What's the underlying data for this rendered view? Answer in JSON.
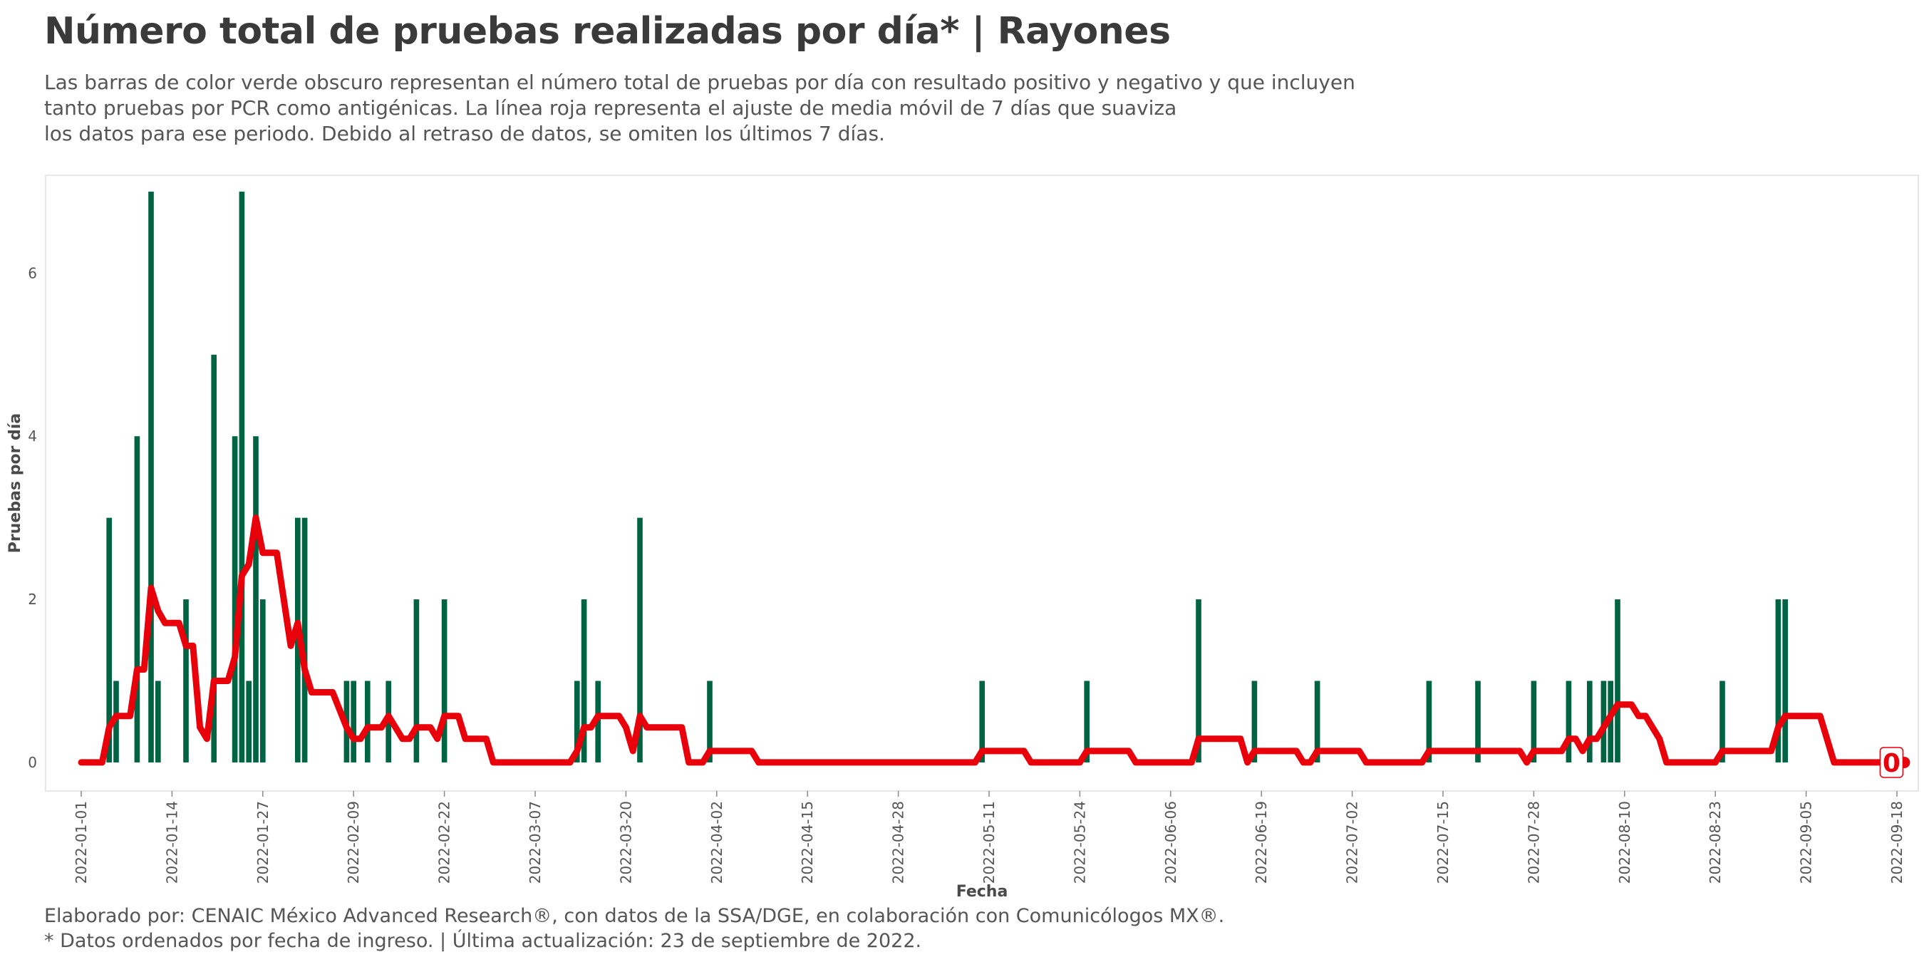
{
  "header": {
    "title": "Número total de pruebas realizadas por día* | Rayones",
    "subtitle_lines": [
      "Las barras de color verde obscuro representan el número total de pruebas por día con resultado positivo y negativo y que incluyen",
      "tanto pruebas por PCR como antigénicas. La línea roja representa el ajuste de media móvil de 7 días que suaviza",
      "los datos para ese periodo. Debido al retraso de datos, se omiten los últimos 7 días."
    ]
  },
  "caption": {
    "line1": "Elaborado por: CENAIC México Advanced Research®, con datos de la SSA/DGE, en colaboración con Comunicólogos MX®.",
    "line2": "* Datos ordenados por fecha de ingreso. | Última actualización: 23 de septiembre de 2022."
  },
  "colors": {
    "bars": "#006341",
    "moving_average": "#e8000b",
    "panel_border": "#e6e6e6"
  },
  "chart_data": {
    "type": "bar",
    "title": "Número total de pruebas realizadas por día* | Rayones",
    "xlabel": "Fecha",
    "ylabel": "Pruebas por día",
    "ylim": [
      -0.35,
      7.2
    ],
    "yticks": [
      0,
      2,
      4,
      6
    ],
    "x_start": "2022-01-01",
    "x_end": "2022-09-18",
    "x_ticks": [
      "2022-01-01",
      "2022-01-14",
      "2022-01-27",
      "2022-02-09",
      "2022-02-22",
      "2022-03-07",
      "2022-03-20",
      "2022-04-02",
      "2022-04-15",
      "2022-04-28",
      "2022-05-11",
      "2022-05-24",
      "2022-06-06",
      "2022-06-19",
      "2022-07-02",
      "2022-07-15",
      "2022-07-28",
      "2022-08-10",
      "2022-08-23",
      "2022-09-05",
      "2022-09-18"
    ],
    "grid": false,
    "bars": [
      {
        "date": "2022-01-05",
        "value": 3
      },
      {
        "date": "2022-01-06",
        "value": 1
      },
      {
        "date": "2022-01-09",
        "value": 4
      },
      {
        "date": "2022-01-11",
        "value": 7
      },
      {
        "date": "2022-01-12",
        "value": 1
      },
      {
        "date": "2022-01-16",
        "value": 2
      },
      {
        "date": "2022-01-20",
        "value": 5
      },
      {
        "date": "2022-01-23",
        "value": 4
      },
      {
        "date": "2022-01-24",
        "value": 7
      },
      {
        "date": "2022-01-25",
        "value": 1
      },
      {
        "date": "2022-01-26",
        "value": 4
      },
      {
        "date": "2022-01-27",
        "value": 2
      },
      {
        "date": "2022-02-01",
        "value": 3
      },
      {
        "date": "2022-02-02",
        "value": 3
      },
      {
        "date": "2022-02-08",
        "value": 1
      },
      {
        "date": "2022-02-09",
        "value": 1
      },
      {
        "date": "2022-02-11",
        "value": 1
      },
      {
        "date": "2022-02-14",
        "value": 1
      },
      {
        "date": "2022-02-18",
        "value": 2
      },
      {
        "date": "2022-02-22",
        "value": 2
      },
      {
        "date": "2022-03-13",
        "value": 1
      },
      {
        "date": "2022-03-14",
        "value": 2
      },
      {
        "date": "2022-03-16",
        "value": 1
      },
      {
        "date": "2022-03-22",
        "value": 3
      },
      {
        "date": "2022-04-01",
        "value": 1
      },
      {
        "date": "2022-05-10",
        "value": 1
      },
      {
        "date": "2022-05-25",
        "value": 1
      },
      {
        "date": "2022-06-10",
        "value": 2
      },
      {
        "date": "2022-06-18",
        "value": 1
      },
      {
        "date": "2022-06-27",
        "value": 1
      },
      {
        "date": "2022-07-13",
        "value": 1
      },
      {
        "date": "2022-07-20",
        "value": 1
      },
      {
        "date": "2022-07-28",
        "value": 1
      },
      {
        "date": "2022-08-02",
        "value": 1
      },
      {
        "date": "2022-08-05",
        "value": 1
      },
      {
        "date": "2022-08-07",
        "value": 1
      },
      {
        "date": "2022-08-08",
        "value": 1
      },
      {
        "date": "2022-08-09",
        "value": 2
      },
      {
        "date": "2022-08-24",
        "value": 1
      },
      {
        "date": "2022-09-01",
        "value": 2
      },
      {
        "date": "2022-09-02",
        "value": 2
      }
    ],
    "moving_average": [
      {
        "date": "2022-01-01",
        "value": 0
      },
      {
        "date": "2022-01-04",
        "value": 0
      },
      {
        "date": "2022-01-05",
        "value": 0.43
      },
      {
        "date": "2022-01-06",
        "value": 0.57
      },
      {
        "date": "2022-01-08",
        "value": 0.57
      },
      {
        "date": "2022-01-09",
        "value": 1.14
      },
      {
        "date": "2022-01-10",
        "value": 1.14
      },
      {
        "date": "2022-01-11",
        "value": 2.14
      },
      {
        "date": "2022-01-12",
        "value": 1.86
      },
      {
        "date": "2022-01-13",
        "value": 1.71
      },
      {
        "date": "2022-01-15",
        "value": 1.71
      },
      {
        "date": "2022-01-16",
        "value": 1.43
      },
      {
        "date": "2022-01-17",
        "value": 1.43
      },
      {
        "date": "2022-01-18",
        "value": 0.43
      },
      {
        "date": "2022-01-19",
        "value": 0.29
      },
      {
        "date": "2022-01-20",
        "value": 1.0
      },
      {
        "date": "2022-01-22",
        "value": 1.0
      },
      {
        "date": "2022-01-23",
        "value": 1.29
      },
      {
        "date": "2022-01-24",
        "value": 2.29
      },
      {
        "date": "2022-01-25",
        "value": 2.43
      },
      {
        "date": "2022-01-26",
        "value": 3.0
      },
      {
        "date": "2022-01-27",
        "value": 2.57
      },
      {
        "date": "2022-01-29",
        "value": 2.57
      },
      {
        "date": "2022-01-31",
        "value": 1.43
      },
      {
        "date": "2022-02-01",
        "value": 1.71
      },
      {
        "date": "2022-02-02",
        "value": 1.14
      },
      {
        "date": "2022-02-03",
        "value": 0.86
      },
      {
        "date": "2022-02-06",
        "value": 0.86
      },
      {
        "date": "2022-02-08",
        "value": 0.43
      },
      {
        "date": "2022-02-09",
        "value": 0.29
      },
      {
        "date": "2022-02-10",
        "value": 0.29
      },
      {
        "date": "2022-02-11",
        "value": 0.43
      },
      {
        "date": "2022-02-13",
        "value": 0.43
      },
      {
        "date": "2022-02-14",
        "value": 0.57
      },
      {
        "date": "2022-02-16",
        "value": 0.29
      },
      {
        "date": "2022-02-17",
        "value": 0.29
      },
      {
        "date": "2022-02-18",
        "value": 0.43
      },
      {
        "date": "2022-02-20",
        "value": 0.43
      },
      {
        "date": "2022-02-21",
        "value": 0.29
      },
      {
        "date": "2022-02-22",
        "value": 0.57
      },
      {
        "date": "2022-02-24",
        "value": 0.57
      },
      {
        "date": "2022-02-25",
        "value": 0.29
      },
      {
        "date": "2022-02-28",
        "value": 0.29
      },
      {
        "date": "2022-03-01",
        "value": 0
      },
      {
        "date": "2022-03-12",
        "value": 0
      },
      {
        "date": "2022-03-13",
        "value": 0.14
      },
      {
        "date": "2022-03-14",
        "value": 0.43
      },
      {
        "date": "2022-03-15",
        "value": 0.43
      },
      {
        "date": "2022-03-16",
        "value": 0.57
      },
      {
        "date": "2022-03-19",
        "value": 0.57
      },
      {
        "date": "2022-03-20",
        "value": 0.43
      },
      {
        "date": "2022-03-21",
        "value": 0.14
      },
      {
        "date": "2022-03-22",
        "value": 0.57
      },
      {
        "date": "2022-03-23",
        "value": 0.43
      },
      {
        "date": "2022-03-28",
        "value": 0.43
      },
      {
        "date": "2022-03-29",
        "value": 0
      },
      {
        "date": "2022-03-30",
        "value": 0
      },
      {
        "date": "2022-03-31",
        "value": 0
      },
      {
        "date": "2022-04-01",
        "value": 0.14
      },
      {
        "date": "2022-04-07",
        "value": 0.14
      },
      {
        "date": "2022-04-08",
        "value": 0
      },
      {
        "date": "2022-05-09",
        "value": 0
      },
      {
        "date": "2022-05-10",
        "value": 0.14
      },
      {
        "date": "2022-05-16",
        "value": 0.14
      },
      {
        "date": "2022-05-17",
        "value": 0
      },
      {
        "date": "2022-05-24",
        "value": 0
      },
      {
        "date": "2022-05-25",
        "value": 0.14
      },
      {
        "date": "2022-05-31",
        "value": 0.14
      },
      {
        "date": "2022-06-01",
        "value": 0
      },
      {
        "date": "2022-06-09",
        "value": 0
      },
      {
        "date": "2022-06-10",
        "value": 0.29
      },
      {
        "date": "2022-06-16",
        "value": 0.29
      },
      {
        "date": "2022-06-17",
        "value": 0
      },
      {
        "date": "2022-06-18",
        "value": 0.14
      },
      {
        "date": "2022-06-24",
        "value": 0.14
      },
      {
        "date": "2022-06-25",
        "value": 0
      },
      {
        "date": "2022-06-26",
        "value": 0
      },
      {
        "date": "2022-06-27",
        "value": 0.14
      },
      {
        "date": "2022-07-03",
        "value": 0.14
      },
      {
        "date": "2022-07-04",
        "value": 0
      },
      {
        "date": "2022-07-12",
        "value": 0
      },
      {
        "date": "2022-07-13",
        "value": 0.14
      },
      {
        "date": "2022-07-26",
        "value": 0.14
      },
      {
        "date": "2022-07-27",
        "value": 0
      },
      {
        "date": "2022-07-28",
        "value": 0.14
      },
      {
        "date": "2022-08-01",
        "value": 0.14
      },
      {
        "date": "2022-08-02",
        "value": 0.29
      },
      {
        "date": "2022-08-03",
        "value": 0.29
      },
      {
        "date": "2022-08-04",
        "value": 0.14
      },
      {
        "date": "2022-08-05",
        "value": 0.29
      },
      {
        "date": "2022-08-06",
        "value": 0.29
      },
      {
        "date": "2022-08-07",
        "value": 0.43
      },
      {
        "date": "2022-08-08",
        "value": 0.57
      },
      {
        "date": "2022-08-09",
        "value": 0.71
      },
      {
        "date": "2022-08-11",
        "value": 0.71
      },
      {
        "date": "2022-08-12",
        "value": 0.57
      },
      {
        "date": "2022-08-13",
        "value": 0.57
      },
      {
        "date": "2022-08-15",
        "value": 0.29
      },
      {
        "date": "2022-08-16",
        "value": 0
      },
      {
        "date": "2022-08-23",
        "value": 0
      },
      {
        "date": "2022-08-24",
        "value": 0.14
      },
      {
        "date": "2022-08-31",
        "value": 0.14
      },
      {
        "date": "2022-09-01",
        "value": 0.43
      },
      {
        "date": "2022-09-02",
        "value": 0.57
      },
      {
        "date": "2022-09-07",
        "value": 0.57
      },
      {
        "date": "2022-09-09",
        "value": 0
      },
      {
        "date": "2022-09-16",
        "value": 0
      }
    ],
    "end_point": {
      "date": "2022-09-16",
      "value": 0,
      "label": "0"
    }
  }
}
